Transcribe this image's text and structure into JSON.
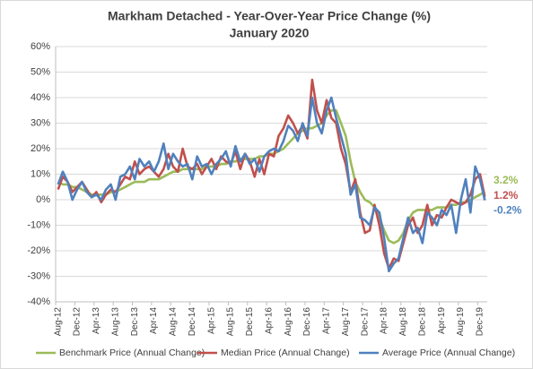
{
  "chart_data": {
    "type": "line",
    "title": "Markham Detached - Year-Over-Year Price Change (%)",
    "subtitle": "January 2020",
    "categories": [
      "Aug-12",
      null,
      null,
      null,
      "Dec-12",
      null,
      null,
      null,
      "Apr-13",
      null,
      null,
      null,
      "Aug-13",
      null,
      null,
      null,
      "Dec-13",
      null,
      null,
      null,
      "Apr-14",
      null,
      null,
      null,
      "Aug-14",
      null,
      null,
      null,
      "Dec-14",
      null,
      null,
      null,
      "Apr-15",
      null,
      null,
      null,
      "Aug-15",
      null,
      null,
      null,
      "Dec-15",
      null,
      null,
      null,
      "Apr-16",
      null,
      null,
      null,
      "Aug-16",
      null,
      null,
      null,
      "Dec-16",
      null,
      null,
      null,
      "Apr-17",
      null,
      null,
      null,
      "Aug-17",
      null,
      null,
      null,
      "Dec-17",
      null,
      null,
      null,
      "Apr-18",
      null,
      null,
      null,
      "Aug-18",
      null,
      null,
      null,
      "Dec-18",
      null,
      null,
      null,
      "Apr-19",
      null,
      null,
      null,
      "Aug-19",
      null,
      null,
      null,
      "Dec-19",
      null
    ],
    "series": [
      {
        "name": "Benchmark Price (Annual Change)",
        "color": "#9bbb59",
        "values": [
          7,
          6,
          6,
          5,
          5,
          4,
          3,
          2,
          2,
          2,
          2,
          3,
          3,
          4,
          5,
          6,
          7,
          7,
          7,
          8,
          8,
          8,
          9,
          10,
          11,
          11,
          12,
          12,
          12,
          12,
          12,
          13,
          13,
          13,
          14,
          14,
          15,
          15,
          16,
          16,
          16,
          16,
          17,
          17,
          18,
          18,
          19,
          20,
          22,
          24,
          26,
          27,
          28,
          28,
          29,
          30,
          33,
          35,
          35,
          30,
          25,
          15,
          7,
          3,
          0,
          -1,
          -3,
          -7,
          -12,
          -16,
          -17,
          -16,
          -13,
          -8,
          -5,
          -4,
          -4,
          -4,
          -4,
          -3,
          -3,
          -3,
          -2,
          -2,
          -1,
          -1,
          0,
          1,
          2,
          3.2
        ],
        "value_labels": [
          null,
          null,
          null,
          null,
          null,
          null,
          null,
          null,
          null,
          null,
          null,
          null,
          null,
          null,
          null,
          null,
          null,
          null,
          null,
          null,
          null,
          null,
          null,
          null,
          null,
          null,
          null,
          null,
          null,
          null,
          null,
          null,
          null,
          null,
          null,
          null,
          null,
          null,
          null,
          null,
          null,
          null,
          null,
          null,
          null,
          null,
          null,
          null,
          null,
          null,
          null,
          null,
          null,
          null,
          null,
          null,
          null,
          null,
          null,
          null,
          null,
          null,
          null,
          null,
          null,
          null,
          null,
          null,
          null,
          null,
          null,
          null,
          null,
          null,
          null,
          null,
          null,
          null,
          null,
          null,
          null,
          null,
          null,
          null,
          null,
          null,
          null,
          null,
          null,
          "3.2%"
        ]
      },
      {
        "name": "Median Price (Annual Change)",
        "color": "#c0504d",
        "values": [
          4,
          9,
          7,
          3,
          5,
          7,
          4,
          1,
          3,
          -1,
          2,
          4,
          3,
          6,
          9,
          8,
          15,
          10,
          12,
          13,
          11,
          9,
          12,
          18,
          13,
          11,
          20,
          13,
          12,
          14,
          10,
          13,
          16,
          12,
          17,
          15,
          14,
          19,
          12,
          18,
          15,
          9,
          16,
          10,
          18,
          17,
          25,
          28,
          33,
          30,
          26,
          29,
          24,
          47,
          35,
          30,
          39,
          32,
          30,
          20,
          14,
          3,
          8,
          -5,
          -13,
          -12,
          -2,
          -10,
          -21,
          -27,
          -23,
          -24,
          -17,
          -10,
          -7,
          -13,
          -10,
          -2,
          -10,
          -6,
          -7,
          -3,
          0,
          -1,
          -2,
          -1,
          2,
          8,
          10,
          1.2
        ],
        "value_labels": [
          null,
          null,
          null,
          null,
          null,
          null,
          null,
          null,
          null,
          null,
          null,
          null,
          null,
          null,
          null,
          null,
          null,
          null,
          null,
          null,
          null,
          null,
          null,
          null,
          null,
          null,
          null,
          null,
          null,
          null,
          null,
          null,
          null,
          null,
          null,
          null,
          null,
          null,
          null,
          null,
          null,
          null,
          null,
          null,
          null,
          null,
          null,
          null,
          null,
          null,
          null,
          null,
          null,
          null,
          null,
          null,
          null,
          null,
          null,
          null,
          null,
          null,
          null,
          null,
          null,
          null,
          null,
          null,
          null,
          null,
          null,
          null,
          null,
          null,
          null,
          null,
          null,
          null,
          null,
          null,
          null,
          null,
          null,
          null,
          null,
          null,
          null,
          null,
          null,
          "1.2%"
        ]
      },
      {
        "name": "Average Price (Annual Change)",
        "color": "#4f81bd",
        "values": [
          6,
          11,
          7,
          0,
          4,
          7,
          3,
          1,
          2,
          0,
          4,
          6,
          0,
          9,
          10,
          13,
          8,
          16,
          13,
          15,
          11,
          15,
          22,
          12,
          18,
          15,
          13,
          14,
          8,
          17,
          13,
          14,
          10,
          14,
          16,
          19,
          13,
          21,
          15,
          18,
          14,
          16,
          11,
          17,
          19,
          20,
          19,
          23,
          29,
          27,
          23,
          30,
          25,
          40,
          30,
          26,
          35,
          40,
          32,
          25,
          18,
          2,
          6,
          -7,
          -8,
          -10,
          -3,
          -5,
          -15,
          -28,
          -25,
          -23,
          -15,
          -7,
          -13,
          -11,
          -17,
          -5,
          -7,
          -10,
          -4,
          -6,
          -2,
          -13,
          0,
          8,
          -5,
          13,
          8,
          -0.2
        ],
        "value_labels": [
          null,
          null,
          null,
          null,
          null,
          null,
          null,
          null,
          null,
          null,
          null,
          null,
          null,
          null,
          null,
          null,
          null,
          null,
          null,
          null,
          null,
          null,
          null,
          null,
          null,
          null,
          null,
          null,
          null,
          null,
          null,
          null,
          null,
          null,
          null,
          null,
          null,
          null,
          null,
          null,
          null,
          null,
          null,
          null,
          null,
          null,
          null,
          null,
          null,
          null,
          null,
          null,
          null,
          null,
          null,
          null,
          null,
          null,
          null,
          null,
          null,
          null,
          null,
          null,
          null,
          null,
          null,
          null,
          null,
          null,
          null,
          null,
          null,
          null,
          null,
          null,
          null,
          null,
          null,
          null,
          null,
          null,
          null,
          null,
          null,
          null,
          null,
          null,
          null,
          "-0.2%"
        ]
      }
    ],
    "ylim": [
      -40,
      60
    ],
    "yticks": [
      {
        "value": -40,
        "label": "-40%"
      },
      {
        "value": -30,
        "label": "-30%"
      },
      {
        "value": -20,
        "label": "-20%"
      },
      {
        "value": -10,
        "label": "-10%"
      },
      {
        "value": 0,
        "label": "0%"
      },
      {
        "value": 10,
        "label": "10%"
      },
      {
        "value": 20,
        "label": "20%"
      },
      {
        "value": 30,
        "label": "30%"
      },
      {
        "value": 40,
        "label": "40%"
      },
      {
        "value": 50,
        "label": "50%"
      },
      {
        "value": 60,
        "label": "60%"
      }
    ],
    "grid": true,
    "legend": "bottom"
  }
}
